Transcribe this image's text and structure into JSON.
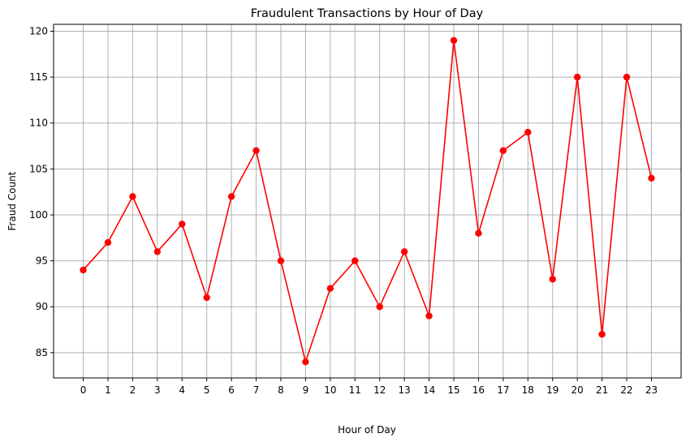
{
  "chart_data": {
    "type": "line",
    "title": "Fraudulent Transactions by Hour of Day",
    "xlabel": "Hour of Day",
    "ylabel": "Fraud Count",
    "x": [
      0,
      1,
      2,
      3,
      4,
      5,
      6,
      7,
      8,
      9,
      10,
      11,
      12,
      13,
      14,
      15,
      16,
      17,
      18,
      19,
      20,
      21,
      22,
      23
    ],
    "x_tick_labels": [
      "0",
      "1",
      "2",
      "3",
      "4",
      "5",
      "6",
      "7",
      "8",
      "9",
      "10",
      "11",
      "12",
      "13",
      "14",
      "15",
      "16",
      "17",
      "18",
      "19",
      "20",
      "21",
      "22",
      "23"
    ],
    "series": [
      {
        "values": [
          94,
          97,
          102,
          96,
          99,
          91,
          102,
          107,
          95,
          84,
          92,
          95,
          90,
          96,
          89,
          119,
          98,
          107,
          109,
          93,
          115,
          87,
          115,
          104
        ],
        "color": "#ff0000",
        "marker": "circle"
      }
    ],
    "y_ticks": [
      85,
      90,
      95,
      100,
      105,
      110,
      115,
      120
    ],
    "y_tick_labels": [
      "85",
      "90",
      "95",
      "100",
      "105",
      "110",
      "115",
      "120"
    ],
    "xlim": [
      -1.2,
      24.2
    ],
    "ylim": [
      82.25,
      120.75
    ],
    "grid": true,
    "grid_color": "#b0b0b0",
    "axis_color": "#000000"
  }
}
